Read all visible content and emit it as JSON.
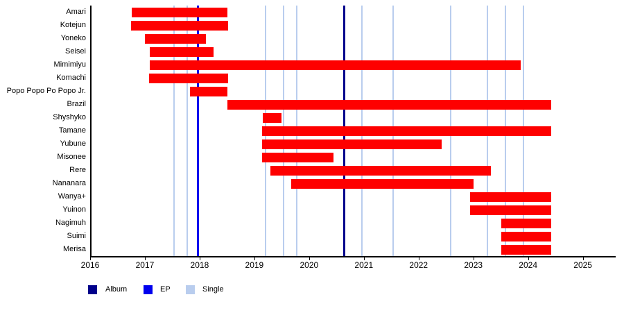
{
  "chart_data": {
    "type": "gantt",
    "description": "Band member tenure timeline with release markers",
    "x_domain": [
      2016,
      2025.6
    ],
    "x_ticks": [
      "2016",
      "2017",
      "2018",
      "2019",
      "2020",
      "2021",
      "2022",
      "2023",
      "2024",
      "2025"
    ],
    "grid": false,
    "legend_position": "bottom-left",
    "members": [
      {
        "label": "Amari",
        "start": 2016.76,
        "end": 2018.51
      },
      {
        "label": "Kotejun",
        "start": 2016.75,
        "end": 2018.52
      },
      {
        "label": "Yoneko",
        "start": 2017.0,
        "end": 2018.11
      },
      {
        "label": "Seisei",
        "start": 2017.09,
        "end": 2018.25
      },
      {
        "label": "Mimimiyu",
        "start": 2017.09,
        "end": 2023.87
      },
      {
        "label": "Komachi",
        "start": 2017.08,
        "end": 2018.52
      },
      {
        "label": "Popo Popo Po Popo Jr.",
        "start": 2017.82,
        "end": 2018.51
      },
      {
        "label": "Brazil",
        "start": 2018.51,
        "end": 2024.42
      },
      {
        "label": "Shyshyko",
        "start": 2019.15,
        "end": 2019.5
      },
      {
        "label": "Tamane",
        "start": 2019.14,
        "end": 2024.42
      },
      {
        "label": "Yubune",
        "start": 2019.14,
        "end": 2022.42
      },
      {
        "label": "Misonee",
        "start": 2019.14,
        "end": 2020.45
      },
      {
        "label": "Rere",
        "start": 2019.29,
        "end": 2023.32
      },
      {
        "label": "Nananara",
        "start": 2019.67,
        "end": 2023.0
      },
      {
        "label": "Wanya+",
        "start": 2022.94,
        "end": 2024.42
      },
      {
        "label": "Yuinon",
        "start": 2022.94,
        "end": 2024.42
      },
      {
        "label": "Nagimuh",
        "start": 2023.51,
        "end": 2024.42
      },
      {
        "label": "Suimi",
        "start": 2023.51,
        "end": 2024.42
      },
      {
        "label": "Merisa",
        "start": 2023.51,
        "end": 2024.42
      }
    ],
    "releases": [
      {
        "type": "single",
        "year": 2017.53
      },
      {
        "type": "single",
        "year": 2017.77
      },
      {
        "type": "ep",
        "year": 2017.97
      },
      {
        "type": "single",
        "year": 2019.2
      },
      {
        "type": "single",
        "year": 2019.53
      },
      {
        "type": "single",
        "year": 2019.77
      },
      {
        "type": "album",
        "year": 2020.64
      },
      {
        "type": "single",
        "year": 2020.97
      },
      {
        "type": "single",
        "year": 2021.54
      },
      {
        "type": "single",
        "year": 2022.59
      },
      {
        "type": "single",
        "year": 2023.26
      },
      {
        "type": "single",
        "year": 2023.59
      },
      {
        "type": "single",
        "year": 2023.91
      }
    ],
    "legend": [
      {
        "type": "album",
        "label": "Album"
      },
      {
        "type": "ep",
        "label": "EP"
      },
      {
        "type": "single",
        "label": "Single"
      }
    ],
    "colors": {
      "bar": "#fe0000",
      "album": "#00008b",
      "ep": "#0000ee",
      "single": "#b9cdee",
      "axis": "#000000"
    }
  }
}
